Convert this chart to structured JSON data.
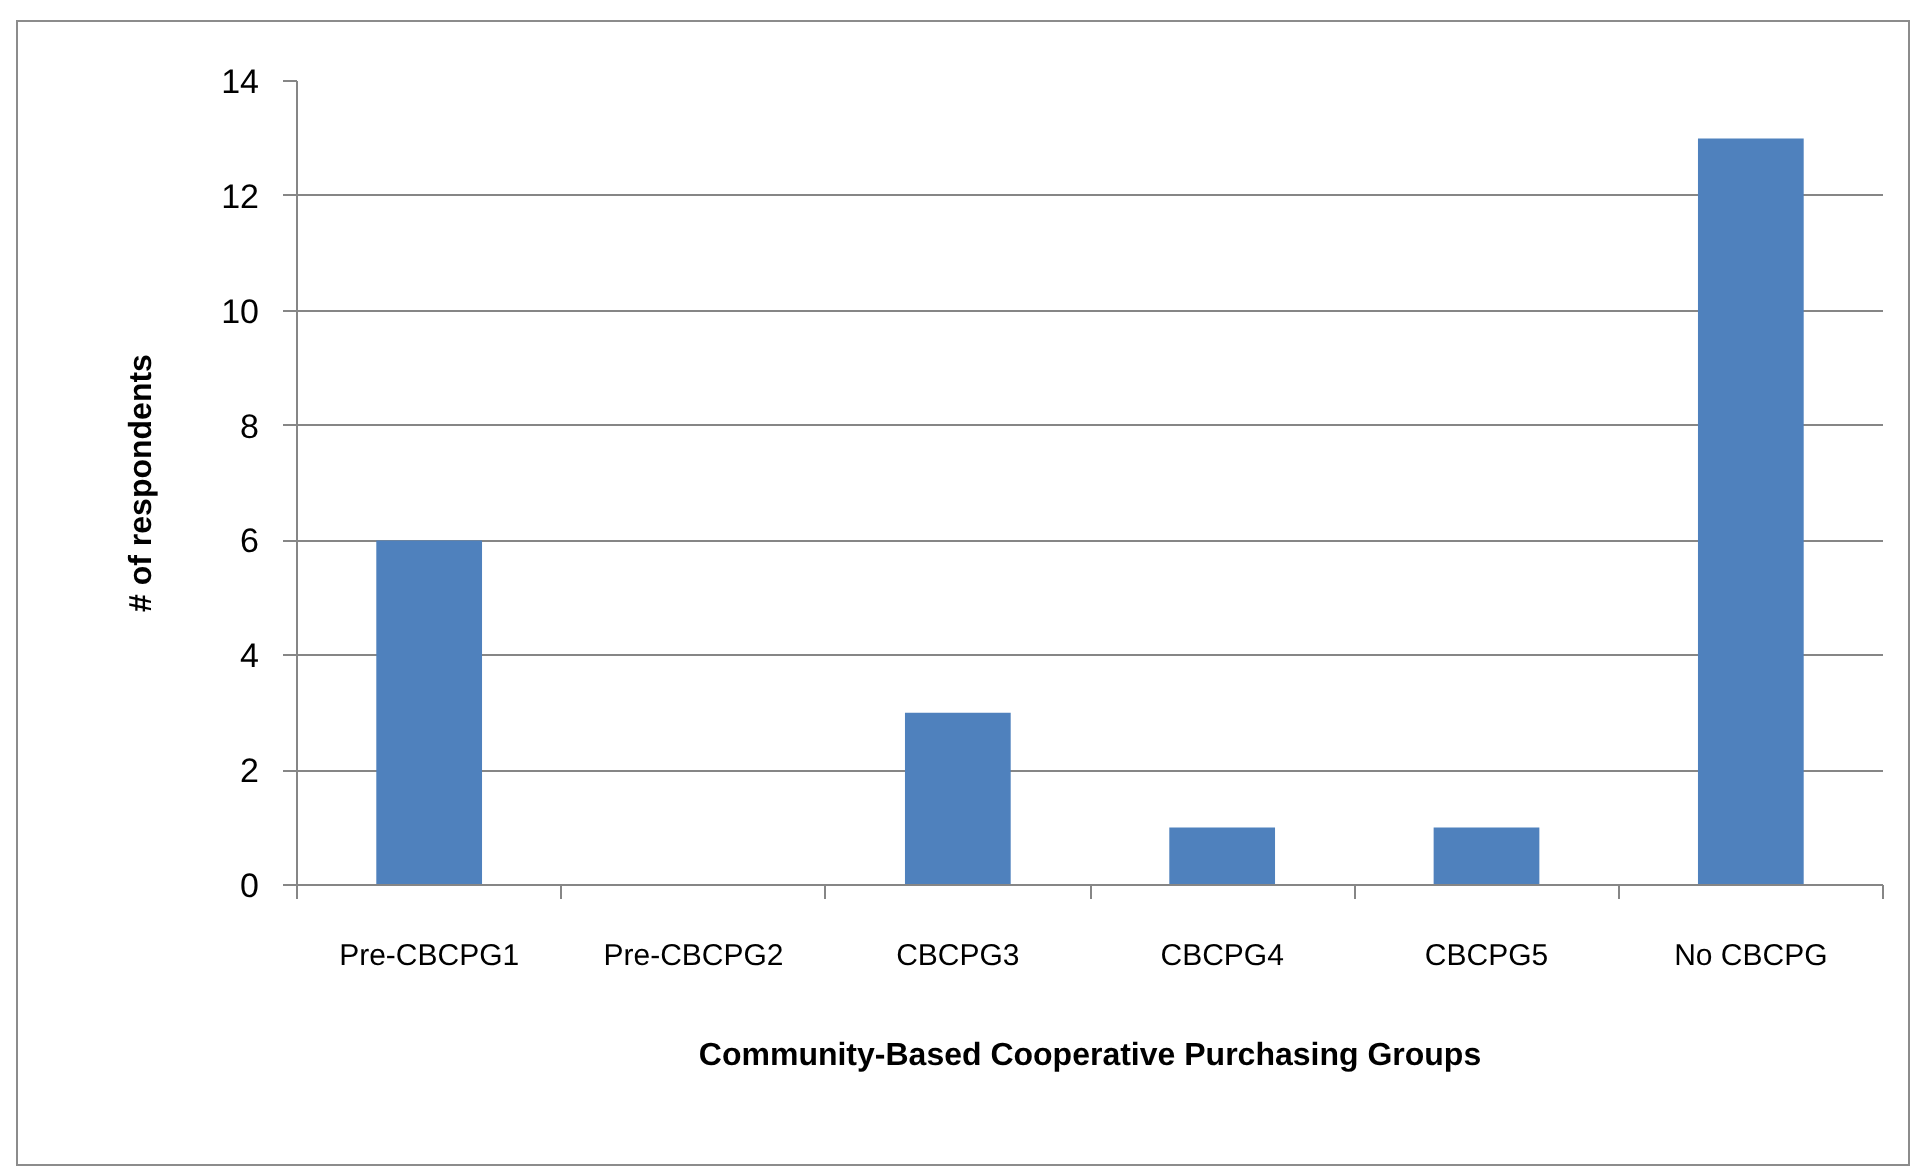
{
  "chart_data": {
    "type": "bar",
    "xlabel": "Community-Based Cooperative Purchasing Groups",
    "ylabel": "# of respondents",
    "categories": [
      "Pre-CBCPG1",
      "Pre-CBCPG2",
      "CBCPG3",
      "CBCPG4",
      "CBCPG5",
      "No CBCPG"
    ],
    "values": [
      6,
      0,
      3,
      1,
      1,
      13
    ],
    "color": "#4f81bd",
    "ylim": [
      0,
      14
    ],
    "yticks": [
      0,
      2,
      4,
      6,
      8,
      10,
      12,
      14
    ],
    "grid": "y"
  }
}
